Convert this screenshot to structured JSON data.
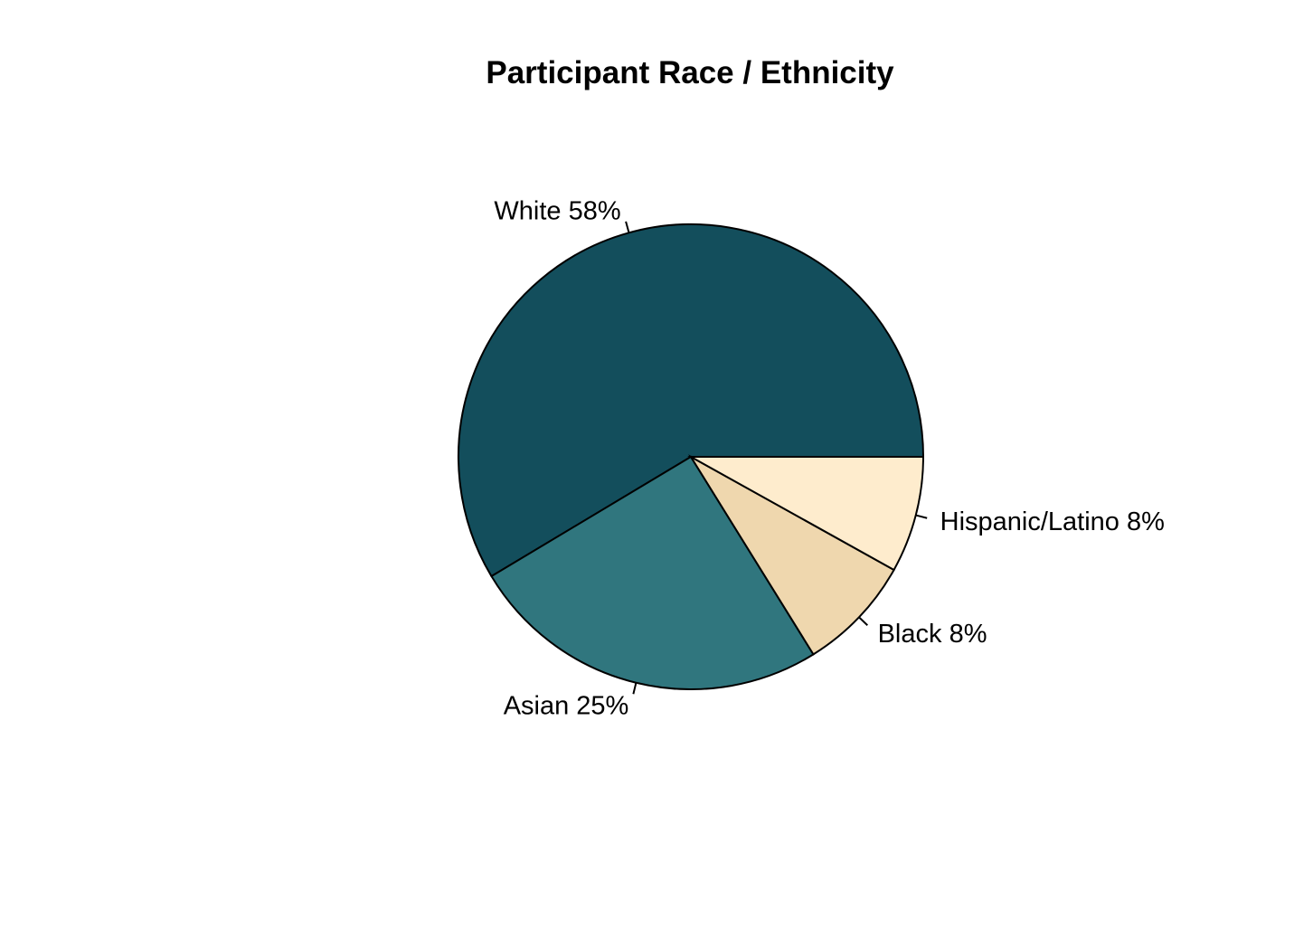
{
  "chart_data": {
    "type": "pie",
    "title": "Participant Race / Ethnicity",
    "slices": [
      {
        "label": "White 58%",
        "value": 58,
        "color": "#134e5c"
      },
      {
        "label": "Asian 25%",
        "value": 25,
        "color": "#30767e"
      },
      {
        "label": "Black 8%",
        "value": 8,
        "color": "#efd7ae"
      },
      {
        "label": "Hispanic/Latino 8%",
        "value": 8,
        "color": "#feeccd"
      }
    ],
    "start": "3 o'clock",
    "direction": "counterclockwise"
  }
}
